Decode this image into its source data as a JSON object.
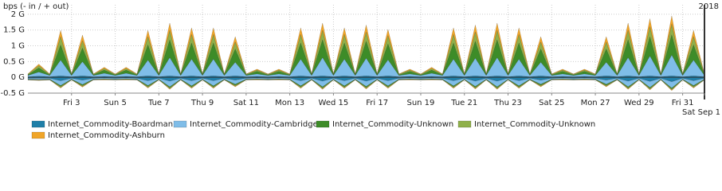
{
  "chart_data": {
    "type": "area",
    "y_label": "bps (- in / + out)",
    "year_label": "2018",
    "x": [
      1,
      1.5,
      2,
      2.5,
      3,
      3.5,
      4,
      4.5,
      5,
      5.5,
      6,
      6.5,
      7,
      7.5,
      8,
      8.5,
      9,
      9.5,
      10,
      10.5,
      11,
      11.5,
      12,
      12.5,
      13,
      13.5,
      14,
      14.5,
      15,
      15.5,
      16,
      16.5,
      17,
      17.5,
      18,
      18.5,
      19,
      19.5,
      20,
      20.5,
      21,
      21.5,
      22,
      22.5,
      23,
      23.5,
      24,
      24.5,
      25,
      25.5,
      26,
      26.5,
      27,
      27.5,
      28,
      28.5,
      29,
      29.5,
      30,
      30.5,
      31,
      31.5,
      32
    ],
    "xlim": [
      1,
      32
    ],
    "xticks": [
      {
        "value": 3,
        "label": "Fri 3"
      },
      {
        "value": 5,
        "label": "Sun 5"
      },
      {
        "value": 7,
        "label": "Tue 7"
      },
      {
        "value": 9,
        "label": "Thu 9"
      },
      {
        "value": 11,
        "label": "Sat 11"
      },
      {
        "value": 13,
        "label": "Mon 13"
      },
      {
        "value": 15,
        "label": "Wed 15"
      },
      {
        "value": 17,
        "label": "Fri 17"
      },
      {
        "value": 19,
        "label": "Sun 19"
      },
      {
        "value": 21,
        "label": "Tue 21"
      },
      {
        "value": 23,
        "label": "Thu 23"
      },
      {
        "value": 25,
        "label": "Sat 25"
      },
      {
        "value": 27,
        "label": "Mon 27"
      },
      {
        "value": 29,
        "label": "Wed 29"
      },
      {
        "value": 31,
        "label": "Fri 31"
      },
      {
        "value": 32,
        "label": "Sat Sep 1"
      }
    ],
    "ylim": [
      -0.5,
      2.3
    ],
    "yticks": [
      {
        "value": 2,
        "label": "2 G"
      },
      {
        "value": 1.5,
        "label": "1.5 G"
      },
      {
        "value": 1,
        "label": "1 G"
      },
      {
        "value": 0.5,
        "label": "0.5 G"
      },
      {
        "value": 0,
        "label": "0 G"
      },
      {
        "value": -0.5,
        "label": "-0.5 G"
      }
    ],
    "grid": true,
    "stacked": true,
    "series": [
      {
        "name": "Internet_Commodity-Boardman",
        "color": "#1f7fa8",
        "values": [
          0.02,
          0.04,
          0.02,
          0.05,
          0.02,
          0.05,
          0.02,
          0.03,
          0.02,
          0.03,
          0.02,
          0.05,
          0.02,
          0.05,
          0.02,
          0.05,
          0.02,
          0.05,
          0.02,
          0.05,
          0.02,
          0.03,
          0.02,
          0.03,
          0.02,
          0.05,
          0.02,
          0.05,
          0.02,
          0.05,
          0.02,
          0.05,
          0.02,
          0.05,
          0.02,
          0.03,
          0.02,
          0.03,
          0.02,
          0.05,
          0.02,
          0.05,
          0.02,
          0.05,
          0.02,
          0.05,
          0.02,
          0.05,
          0.02,
          0.03,
          0.02,
          0.03,
          0.02,
          0.05,
          0.02,
          0.05,
          0.02,
          0.05,
          0.02,
          0.05,
          0.02,
          0.05,
          0.02
        ],
        "in_values": [
          -0.03,
          -0.03,
          -0.03,
          -0.11,
          -0.03,
          -0.09,
          -0.03,
          -0.02,
          -0.03,
          -0.02,
          -0.03,
          -0.11,
          -0.03,
          -0.12,
          -0.03,
          -0.11,
          -0.03,
          -0.11,
          -0.03,
          -0.09,
          -0.03,
          -0.02,
          -0.03,
          -0.02,
          -0.03,
          -0.11,
          -0.03,
          -0.12,
          -0.03,
          -0.11,
          -0.03,
          -0.12,
          -0.03,
          -0.11,
          -0.03,
          -0.02,
          -0.03,
          -0.02,
          -0.03,
          -0.11,
          -0.03,
          -0.12,
          -0.03,
          -0.12,
          -0.03,
          -0.11,
          -0.03,
          -0.09,
          -0.03,
          -0.02,
          -0.03,
          -0.02,
          -0.03,
          -0.09,
          -0.03,
          -0.12,
          -0.03,
          -0.13,
          -0.03,
          -0.14,
          -0.03,
          -0.11,
          -0.03
        ]
      },
      {
        "name": "Internet_Commodity-Cambridge",
        "color": "#7fbde8",
        "values": [
          0.04,
          0.13,
          0.04,
          0.5,
          0.04,
          0.45,
          0.04,
          0.1,
          0.04,
          0.1,
          0.04,
          0.5,
          0.04,
          0.58,
          0.04,
          0.53,
          0.04,
          0.53,
          0.04,
          0.43,
          0.04,
          0.08,
          0.04,
          0.08,
          0.04,
          0.53,
          0.04,
          0.58,
          0.04,
          0.53,
          0.04,
          0.56,
          0.04,
          0.51,
          0.04,
          0.08,
          0.04,
          0.1,
          0.04,
          0.53,
          0.04,
          0.56,
          0.04,
          0.58,
          0.04,
          0.53,
          0.04,
          0.43,
          0.04,
          0.08,
          0.04,
          0.08,
          0.04,
          0.43,
          0.04,
          0.58,
          0.04,
          0.63,
          0.04,
          0.66,
          0.04,
          0.5,
          0.04
        ],
        "in_values": [
          -0.03,
          -0.04,
          -0.03,
          -0.15,
          -0.03,
          -0.14,
          -0.03,
          -0.03,
          -0.03,
          -0.03,
          -0.03,
          -0.15,
          -0.03,
          -0.18,
          -0.03,
          -0.16,
          -0.03,
          -0.16,
          -0.03,
          -0.13,
          -0.03,
          -0.03,
          -0.03,
          -0.03,
          -0.03,
          -0.16,
          -0.03,
          -0.18,
          -0.03,
          -0.16,
          -0.03,
          -0.17,
          -0.03,
          -0.16,
          -0.03,
          -0.03,
          -0.03,
          -0.03,
          -0.03,
          -0.16,
          -0.03,
          -0.17,
          -0.03,
          -0.18,
          -0.03,
          -0.16,
          -0.03,
          -0.13,
          -0.03,
          -0.03,
          -0.03,
          -0.03,
          -0.03,
          -0.13,
          -0.03,
          -0.18,
          -0.03,
          -0.19,
          -0.03,
          -0.2,
          -0.03,
          -0.15,
          -0.03
        ]
      },
      {
        "name": "Internet_Commodity-Unknown",
        "color": "#3d8c28",
        "values": [
          0.02,
          0.13,
          0.02,
          0.48,
          0.02,
          0.43,
          0.02,
          0.1,
          0.02,
          0.1,
          0.02,
          0.48,
          0.02,
          0.56,
          0.02,
          0.51,
          0.02,
          0.51,
          0.02,
          0.42,
          0.02,
          0.08,
          0.02,
          0.08,
          0.02,
          0.51,
          0.02,
          0.56,
          0.02,
          0.51,
          0.02,
          0.54,
          0.02,
          0.5,
          0.02,
          0.08,
          0.02,
          0.1,
          0.02,
          0.51,
          0.02,
          0.54,
          0.02,
          0.56,
          0.02,
          0.51,
          0.02,
          0.42,
          0.02,
          0.08,
          0.02,
          0.08,
          0.02,
          0.42,
          0.02,
          0.56,
          0.02,
          0.61,
          0.02,
          0.64,
          0.02,
          0.48,
          0.02
        ],
        "in_values": [
          -0.01,
          -0.01,
          -0.01,
          -0.03,
          -0.01,
          -0.03,
          -0.01,
          -0.01,
          -0.01,
          -0.01,
          -0.01,
          -0.03,
          -0.01,
          -0.03,
          -0.01,
          -0.03,
          -0.01,
          -0.03,
          -0.01,
          -0.03,
          -0.01,
          -0.01,
          -0.01,
          -0.01,
          -0.01,
          -0.03,
          -0.01,
          -0.03,
          -0.01,
          -0.03,
          -0.01,
          -0.03,
          -0.01,
          -0.03,
          -0.01,
          -0.01,
          -0.01,
          -0.01,
          -0.01,
          -0.03,
          -0.01,
          -0.03,
          -0.01,
          -0.03,
          -0.01,
          -0.03,
          -0.01,
          -0.03,
          -0.01,
          -0.01,
          -0.01,
          -0.01,
          -0.01,
          -0.03,
          -0.01,
          -0.03,
          -0.01,
          -0.03,
          -0.01,
          -0.03,
          -0.01,
          -0.03,
          -0.01
        ]
      },
      {
        "name": "Internet_Commodity-Unknown",
        "color": "#8fb04a",
        "values": [
          0.02,
          0.07,
          0.02,
          0.26,
          0.02,
          0.23,
          0.02,
          0.05,
          0.02,
          0.05,
          0.02,
          0.26,
          0.02,
          0.3,
          0.02,
          0.27,
          0.02,
          0.27,
          0.02,
          0.22,
          0.02,
          0.04,
          0.02,
          0.04,
          0.02,
          0.27,
          0.02,
          0.3,
          0.02,
          0.27,
          0.02,
          0.29,
          0.02,
          0.26,
          0.02,
          0.04,
          0.02,
          0.05,
          0.02,
          0.27,
          0.02,
          0.29,
          0.02,
          0.3,
          0.02,
          0.27,
          0.02,
          0.22,
          0.02,
          0.04,
          0.02,
          0.04,
          0.02,
          0.22,
          0.02,
          0.3,
          0.02,
          0.32,
          0.02,
          0.34,
          0.02,
          0.26,
          0.02
        ],
        "in_values": [
          -0.01,
          -0.01,
          -0.01,
          -0.03,
          -0.01,
          -0.03,
          -0.01,
          -0.01,
          -0.01,
          -0.01,
          -0.01,
          -0.03,
          -0.01,
          -0.03,
          -0.01,
          -0.03,
          -0.01,
          -0.03,
          -0.01,
          -0.03,
          -0.01,
          -0.01,
          -0.01,
          -0.01,
          -0.01,
          -0.03,
          -0.01,
          -0.03,
          -0.01,
          -0.03,
          -0.01,
          -0.03,
          -0.01,
          -0.03,
          -0.01,
          -0.01,
          -0.01,
          -0.01,
          -0.01,
          -0.03,
          -0.01,
          -0.03,
          -0.01,
          -0.03,
          -0.01,
          -0.03,
          -0.01,
          -0.03,
          -0.01,
          -0.01,
          -0.01,
          -0.01,
          -0.01,
          -0.03,
          -0.01,
          -0.03,
          -0.01,
          -0.03,
          -0.01,
          -0.03,
          -0.01,
          -0.03,
          -0.01
        ]
      },
      {
        "name": "Internet_Commodity-Ashburn",
        "color": "#f0a528",
        "values": [
          0.01,
          0.05,
          0.01,
          0.2,
          0.01,
          0.18,
          0.01,
          0.04,
          0.01,
          0.04,
          0.01,
          0.2,
          0.01,
          0.23,
          0.01,
          0.21,
          0.01,
          0.21,
          0.01,
          0.17,
          0.01,
          0.03,
          0.01,
          0.03,
          0.01,
          0.21,
          0.01,
          0.23,
          0.01,
          0.21,
          0.01,
          0.22,
          0.01,
          0.2,
          0.01,
          0.03,
          0.01,
          0.04,
          0.01,
          0.21,
          0.01,
          0.22,
          0.01,
          0.23,
          0.01,
          0.21,
          0.01,
          0.17,
          0.01,
          0.03,
          0.01,
          0.03,
          0.01,
          0.17,
          0.01,
          0.23,
          0.01,
          0.25,
          0.01,
          0.26,
          0.01,
          0.2,
          0.01
        ],
        "in_values": [
          0,
          -0.01,
          0,
          -0.02,
          0,
          -0.02,
          0,
          -0.01,
          0,
          -0.01,
          0,
          -0.02,
          0,
          -0.02,
          0,
          -0.02,
          0,
          -0.02,
          0,
          -0.02,
          0,
          -0.01,
          0,
          -0.01,
          0,
          -0.02,
          0,
          -0.02,
          0,
          -0.02,
          0,
          -0.02,
          0,
          -0.02,
          0,
          -0.01,
          0,
          -0.01,
          0,
          -0.02,
          0,
          -0.02,
          0,
          -0.02,
          0,
          -0.02,
          0,
          -0.02,
          0,
          -0.01,
          0,
          -0.01,
          0,
          -0.02,
          0,
          -0.02,
          0,
          -0.02,
          0,
          -0.02,
          0,
          -0.02,
          0
        ]
      }
    ]
  }
}
